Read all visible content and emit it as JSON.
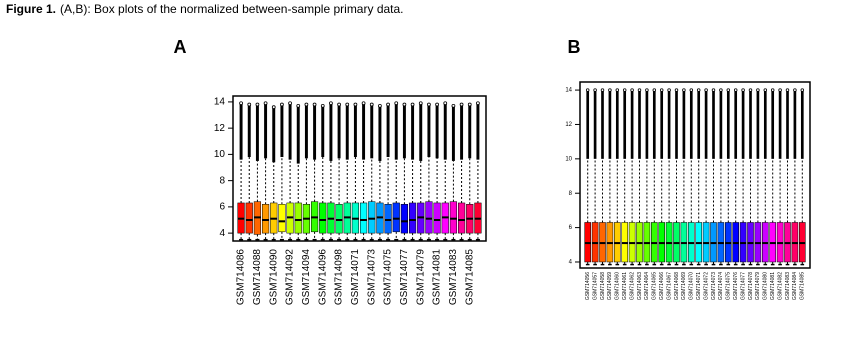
{
  "figure_caption": {
    "label": "Figure 1.",
    "text": "(A,B): Box plots of the normalized between-sample primary data."
  },
  "chart_data": [
    {
      "type": "box",
      "title": "A",
      "categories": [
        "GSM714086",
        null,
        "GSM714088",
        null,
        "GSM714090",
        null,
        "GSM714092",
        null,
        "GSM714094",
        null,
        "GSM714096",
        null,
        "GSM714098",
        null,
        "GSM714071",
        null,
        "GSM714073",
        null,
        "GSM714075",
        null,
        "GSM714077",
        null,
        "GSM714079",
        null,
        "GSM714081",
        null,
        "GSM714083",
        null,
        "GSM714085",
        null
      ],
      "whislo": [
        3.5,
        3.5,
        3.5,
        3.5,
        3.5,
        3.5,
        3.5,
        3.5,
        3.5,
        3.5,
        3.5,
        3.5,
        3.5,
        3.5,
        3.5,
        3.5,
        3.5,
        3.5,
        3.5,
        3.5,
        3.5,
        3.5,
        3.5,
        3.5,
        3.5,
        3.5,
        3.5,
        3.5,
        3.5,
        3.5
      ],
      "q1": [
        4.0,
        4.0,
        3.9,
        4.0,
        4.0,
        4.1,
        4.0,
        4.0,
        4.0,
        4.1,
        4.0,
        4.0,
        4.0,
        4.0,
        4.0,
        4.0,
        4.0,
        4.0,
        4.0,
        4.1,
        4.0,
        4.0,
        4.0,
        4.0,
        4.0,
        4.0,
        4.0,
        4.0,
        4.0,
        4.0
      ],
      "med": [
        5.1,
        5.0,
        5.2,
        5.0,
        5.1,
        4.9,
        5.2,
        5.0,
        5.1,
        5.2,
        5.0,
        5.1,
        5.0,
        5.2,
        5.1,
        5.0,
        5.1,
        5.2,
        5.0,
        5.1,
        4.9,
        5.0,
        5.2,
        5.1,
        5.0,
        5.2,
        5.1,
        5.0,
        5.1,
        5.1
      ],
      "q3": [
        6.3,
        6.3,
        6.4,
        6.2,
        6.3,
        6.2,
        6.3,
        6.3,
        6.2,
        6.4,
        6.3,
        6.3,
        6.2,
        6.3,
        6.3,
        6.3,
        6.4,
        6.3,
        6.2,
        6.3,
        6.2,
        6.3,
        6.3,
        6.4,
        6.3,
        6.3,
        6.4,
        6.3,
        6.2,
        6.3
      ],
      "whishi": [
        9.6,
        9.8,
        9.5,
        9.7,
        9.4,
        9.8,
        9.6,
        9.3,
        9.7,
        9.6,
        9.8,
        9.5,
        9.7,
        9.6,
        9.8,
        9.6,
        9.7,
        9.5,
        9.8,
        9.6,
        9.7,
        9.6,
        9.5,
        9.8,
        9.7,
        9.6,
        9.5,
        9.6,
        9.7,
        9.6
      ],
      "max": [
        13.9,
        13.8,
        13.8,
        13.9,
        13.6,
        13.8,
        13.9,
        13.7,
        13.8,
        13.8,
        13.7,
        13.9,
        13.8,
        13.8,
        13.8,
        13.9,
        13.8,
        13.7,
        13.8,
        13.9,
        13.8,
        13.8,
        13.9,
        13.8,
        13.8,
        13.9,
        13.7,
        13.8,
        13.8,
        13.9
      ],
      "colors": [
        "#ff0000",
        "#ff3300",
        "#ff6600",
        "#ff9900",
        "#ffcc00",
        "#ffff00",
        "#ccff00",
        "#99ff00",
        "#66ff00",
        "#33ff00",
        "#00ff00",
        "#00ff33",
        "#00ff66",
        "#00ff99",
        "#00ffcc",
        "#00ffff",
        "#00ccff",
        "#0099ff",
        "#0066ff",
        "#0033ff",
        "#0000ff",
        "#3300ff",
        "#6600ff",
        "#9900ff",
        "#cc00ff",
        "#ff00ff",
        "#ff00cc",
        "#ff0099",
        "#ff0066",
        "#ff0033"
      ],
      "ylim": [
        3.4,
        14.45
      ],
      "yticks": [
        4,
        6,
        8,
        10,
        12,
        14
      ]
    },
    {
      "type": "box",
      "title": "B",
      "categories": [
        "GSM714056",
        "GSM714057",
        "GSM714058",
        "GSM714059",
        "GSM714060",
        "GSM714061",
        "GSM714062",
        "GSM714063",
        "GSM714064",
        "GSM714065",
        "GSM714066",
        "GSM714067",
        "GSM714068",
        "GSM714069",
        "GSM714070",
        "GSM714071",
        "GSM714072",
        "GSM714073",
        "GSM714074",
        "GSM714075",
        "GSM714076",
        "GSM714077",
        "GSM714078",
        "GSM714079",
        "GSM714080",
        "GSM714081",
        "GSM714082",
        "GSM714083",
        "GSM714084",
        "GSM714085"
      ],
      "whislo": [
        3.85,
        3.85,
        3.85,
        3.85,
        3.85,
        3.85,
        3.85,
        3.85,
        3.85,
        3.85,
        3.85,
        3.85,
        3.85,
        3.85,
        3.85,
        3.85,
        3.85,
        3.85,
        3.85,
        3.85,
        3.85,
        3.85,
        3.85,
        3.85,
        3.85,
        3.85,
        3.85,
        3.85,
        3.85,
        3.85
      ],
      "q1": [
        4.0,
        4.0,
        4.0,
        4.0,
        4.0,
        4.0,
        4.0,
        4.0,
        4.0,
        4.0,
        4.0,
        4.0,
        4.0,
        4.0,
        4.0,
        4.0,
        4.0,
        4.0,
        4.0,
        4.0,
        4.0,
        4.0,
        4.0,
        4.0,
        4.0,
        4.0,
        4.0,
        4.0,
        4.0,
        4.0
      ],
      "med": [
        5.1,
        5.1,
        5.1,
        5.1,
        5.1,
        5.1,
        5.1,
        5.1,
        5.1,
        5.1,
        5.1,
        5.1,
        5.1,
        5.1,
        5.1,
        5.1,
        5.1,
        5.1,
        5.1,
        5.1,
        5.1,
        5.1,
        5.1,
        5.1,
        5.1,
        5.1,
        5.1,
        5.1,
        5.1,
        5.1
      ],
      "q3": [
        6.3,
        6.3,
        6.3,
        6.3,
        6.3,
        6.3,
        6.3,
        6.3,
        6.3,
        6.3,
        6.3,
        6.3,
        6.3,
        6.3,
        6.3,
        6.3,
        6.3,
        6.3,
        6.3,
        6.3,
        6.3,
        6.3,
        6.3,
        6.3,
        6.3,
        6.3,
        6.3,
        6.3,
        6.3,
        6.3
      ],
      "whishi": [
        10.0,
        10.0,
        10.0,
        10.0,
        10.0,
        10.0,
        10.0,
        10.0,
        10.0,
        10.0,
        10.0,
        10.0,
        10.0,
        10.0,
        10.0,
        10.0,
        10.0,
        10.0,
        10.0,
        10.0,
        10.0,
        10.0,
        10.0,
        10.0,
        10.0,
        10.0,
        10.0,
        10.0,
        10.0,
        10.0
      ],
      "max": [
        14.0,
        14.0,
        14.0,
        14.0,
        14.0,
        14.0,
        14.0,
        14.0,
        14.0,
        14.0,
        14.0,
        14.0,
        14.0,
        14.0,
        14.0,
        14.0,
        14.0,
        14.0,
        14.0,
        14.0,
        14.0,
        14.0,
        14.0,
        14.0,
        14.0,
        14.0,
        14.0,
        14.0,
        14.0,
        14.0
      ],
      "colors": [
        "#ff0000",
        "#ff3300",
        "#ff6600",
        "#ff9900",
        "#ffcc00",
        "#ffff00",
        "#ccff00",
        "#99ff00",
        "#66ff00",
        "#33ff00",
        "#00ff00",
        "#00ff33",
        "#00ff66",
        "#00ff99",
        "#00ffcc",
        "#00ffff",
        "#00ccff",
        "#0099ff",
        "#0066ff",
        "#0033ff",
        "#0000ff",
        "#3300ff",
        "#6600ff",
        "#9900ff",
        "#cc00ff",
        "#ff00ff",
        "#ff00cc",
        "#ff0099",
        "#ff0066",
        "#ff0033"
      ],
      "ylim": [
        3.65,
        14.47
      ],
      "yticks": [
        4,
        6,
        8,
        10,
        12,
        14
      ]
    }
  ]
}
